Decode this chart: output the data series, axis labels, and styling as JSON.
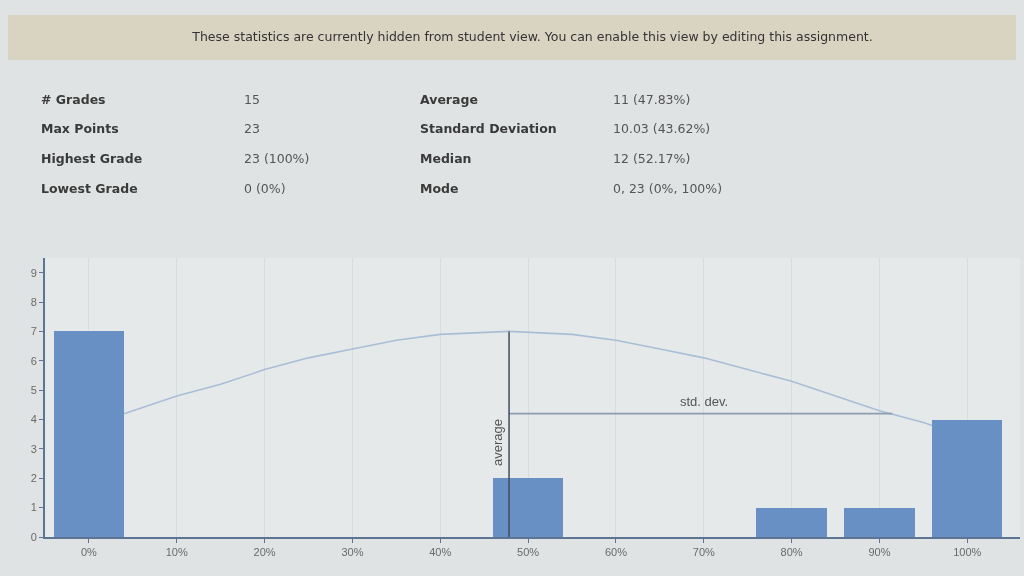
{
  "chart_data": {
    "type": "bar",
    "title": "These statistics are currently hidden from student view. You can enable this view by editing this assignment.",
    "annotations": [
      "# Grades",
      "15",
      "Average",
      "11 (47.83%)",
      "Max Points",
      "23",
      "Standard Deviation",
      "10.03 (43.62%)",
      "Highest Grade",
      "23 (100%)",
      "Median",
      "12 (52.17%)",
      "Lowest Grade",
      "0 (0%)",
      "Mode",
      "0, 23 (0%, 100%)",
      {
        "text": "std. dev.",
        "x": 70,
        "y": 4.2
      }
    ],
    "series": [
      {
        "x": [
          0,
          50,
          80,
          90,
          100
        ],
        "values": [
          7,
          2,
          1,
          1,
          4
        ],
        "color": "#6890c4"
      },
      {
        "type": "line",
        "x": [
          4,
          10,
          15,
          20,
          25,
          30,
          35,
          40,
          47.83,
          55,
          60,
          65,
          70,
          75,
          80,
          85,
          90,
          95,
          96
        ],
        "values": [
          4.2,
          4.8,
          5.2,
          5.7,
          6.1,
          6.4,
          6.7,
          6.9,
          7.0,
          6.9,
          6.7,
          6.4,
          6.1,
          5.7,
          5.3,
          4.8,
          4.3,
          3.9,
          3.8
        ],
        "color": "#a9bed6"
      },
      {
        "type": "line",
        "x": [
          47.83,
          91.45
        ],
        "values": [
          4.2,
          4.2
        ],
        "color": "#8c9db2"
      }
    ],
    "ref_lines": [
      {
        "axis": "x",
        "value": 47.83,
        "label": "average",
        "color": "#3e4c5e"
      }
    ],
    "xlim": [
      -5,
      106
    ],
    "ylim": [
      0,
      9.5
    ],
    "xticks": [
      {
        "value": 0,
        "label": "0%"
      },
      {
        "value": 10,
        "label": "10%"
      },
      {
        "value": 20,
        "label": "20%"
      },
      {
        "value": 30,
        "label": "30%"
      },
      {
        "value": 40,
        "label": "40%"
      },
      {
        "value": 50,
        "label": "50%"
      },
      {
        "value": 60,
        "label": "60%"
      },
      {
        "value": 70,
        "label": "70%"
      },
      {
        "value": 80,
        "label": "80%"
      },
      {
        "value": 90,
        "label": "90%"
      },
      {
        "value": 100,
        "label": "100%"
      }
    ],
    "yticks": [
      0,
      1,
      2,
      3,
      4,
      5,
      6,
      7,
      8,
      9
    ],
    "grid": "x"
  }
}
